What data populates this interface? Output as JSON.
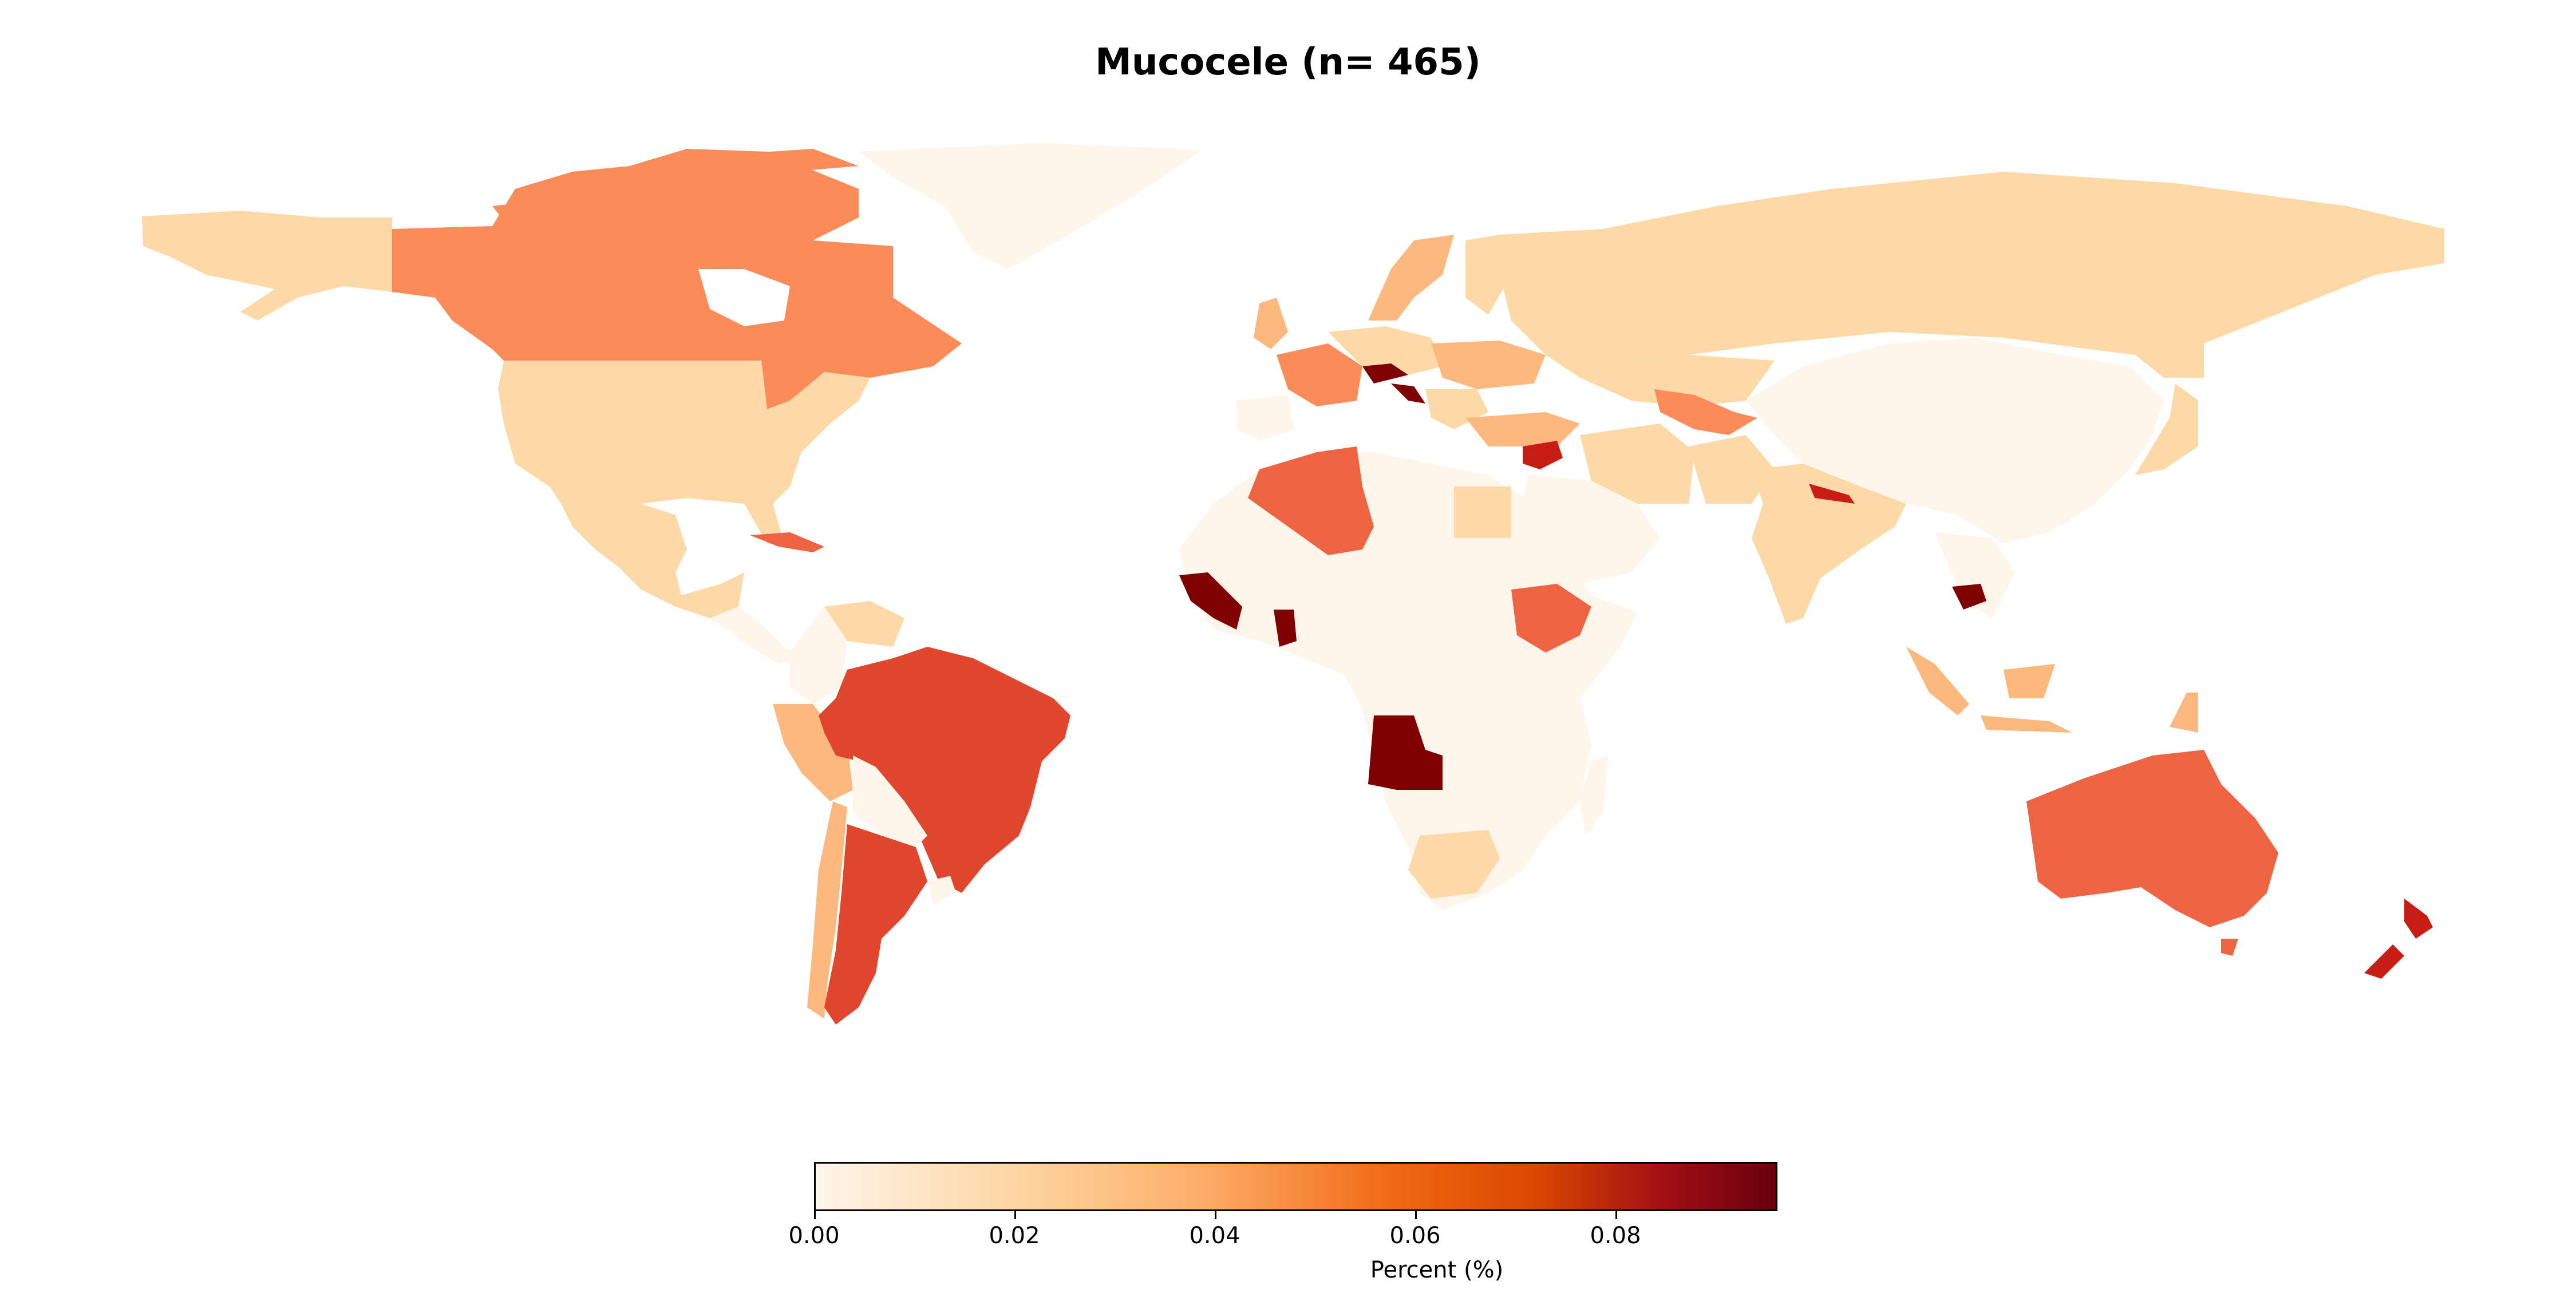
{
  "title": "Mucocele (n= 465)",
  "colorbar": {
    "label": "Percent (%)",
    "ticks": [
      "0.00",
      "0.02",
      "0.04",
      "0.06",
      "0.08"
    ],
    "range": [
      0.0,
      0.096
    ],
    "colormap": "OrRd-like sequential (light cream to dark red)"
  },
  "chart_data": {
    "type": "choropleth",
    "title": "Mucocele (n= 465)",
    "colorbar_label": "Percent (%)",
    "value_range": [
      0.0,
      0.096
    ],
    "colors": {
      "v0": "#fff5eb",
      "v1": "#fdd9a8",
      "v2": "#fdb97d",
      "v3": "#fb8b58",
      "v4": "#ee6443",
      "v5": "#e0452e",
      "v6": "#c81d14",
      "v7": "#7f0000",
      "none": "#ffffff"
    },
    "countries": [
      {
        "name": "Canada",
        "value": 0.047
      },
      {
        "name": "United States",
        "value": 0.018
      },
      {
        "name": "Mexico",
        "value": 0.014
      },
      {
        "name": "Greenland",
        "value": 0.001
      },
      {
        "name": "Cuba",
        "value": 0.062
      },
      {
        "name": "Brazil",
        "value": 0.068
      },
      {
        "name": "Argentina",
        "value": 0.068
      },
      {
        "name": "Peru",
        "value": 0.022
      },
      {
        "name": "Algeria",
        "value": 0.065
      },
      {
        "name": "Ethiopia",
        "value": 0.062
      },
      {
        "name": "Angola",
        "value": 0.093
      },
      {
        "name": "Guinea",
        "value": 0.093
      },
      {
        "name": "Ghana",
        "value": 0.093
      },
      {
        "name": "South Africa",
        "value": 0.018
      },
      {
        "name": "Russia",
        "value": 0.018
      },
      {
        "name": "Syria",
        "value": 0.072
      },
      {
        "name": "Uzbekistan",
        "value": 0.045
      },
      {
        "name": "Nepal",
        "value": 0.09
      },
      {
        "name": "Cambodia",
        "value": 0.093
      },
      {
        "name": "India",
        "value": 0.018
      },
      {
        "name": "China",
        "value": 0.003
      },
      {
        "name": "Australia",
        "value": 0.06
      },
      {
        "name": "New Zealand",
        "value": 0.075
      },
      {
        "name": "France",
        "value": 0.038
      },
      {
        "name": "Austria",
        "value": 0.093
      },
      {
        "name": "Indonesia",
        "value": 0.035
      }
    ]
  }
}
